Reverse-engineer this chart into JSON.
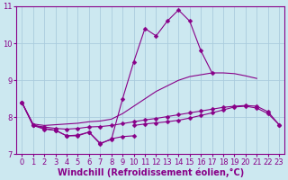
{
  "x": [
    0,
    1,
    2,
    3,
    4,
    5,
    6,
    7,
    8,
    9,
    10,
    11,
    12,
    13,
    14,
    15,
    16,
    17,
    18,
    19,
    20,
    21,
    22,
    23
  ],
  "line_main": [
    8.4,
    7.8,
    7.7,
    7.65,
    7.5,
    7.5,
    7.6,
    7.3,
    7.4,
    8.5,
    9.5,
    10.4,
    10.2,
    10.6,
    10.9,
    10.6,
    9.8,
    9.2,
    null,
    null,
    null,
    null,
    null,
    null
  ],
  "line_smooth_top": [
    8.4,
    7.82,
    7.78,
    7.8,
    7.82,
    7.84,
    7.88,
    7.9,
    7.95,
    8.1,
    8.3,
    8.5,
    8.7,
    8.85,
    9.0,
    9.1,
    9.15,
    9.2,
    9.2,
    9.18,
    9.12,
    9.05,
    null,
    null
  ],
  "line_mid": [
    null,
    null,
    null,
    null,
    null,
    null,
    null,
    null,
    null,
    null,
    7.78,
    7.82,
    7.85,
    7.88,
    7.92,
    7.98,
    8.05,
    8.12,
    8.2,
    8.28,
    8.3,
    8.25,
    8.1,
    7.8
  ],
  "line_bottom_dip": [
    8.4,
    7.78,
    7.68,
    7.65,
    7.5,
    7.52,
    7.6,
    7.28,
    7.42,
    7.48,
    7.5,
    null,
    null,
    null,
    null,
    null,
    null,
    null,
    null,
    null,
    null,
    null,
    null,
    null
  ],
  "line_full_low": [
    8.4,
    7.78,
    7.74,
    7.7,
    7.68,
    7.7,
    7.74,
    7.75,
    7.78,
    7.83,
    7.88,
    7.93,
    7.97,
    8.02,
    8.07,
    8.12,
    8.17,
    8.22,
    8.27,
    8.3,
    8.32,
    8.3,
    8.15,
    7.8
  ],
  "bg_color": "#cce8f0",
  "grid_color": "#aaccdd",
  "line_color": "#880088",
  "marker": "D",
  "markersize": 2.5,
  "xlim": [
    -0.5,
    23.5
  ],
  "ylim": [
    7.0,
    11.0
  ],
  "yticks": [
    7,
    8,
    9,
    10,
    11
  ],
  "xticks": [
    0,
    1,
    2,
    3,
    4,
    5,
    6,
    7,
    8,
    9,
    10,
    11,
    12,
    13,
    14,
    15,
    16,
    17,
    18,
    19,
    20,
    21,
    22,
    23
  ],
  "xlabel": "Windchill (Refroidissement éolien,°C)",
  "xlabel_fontsize": 7.0,
  "tick_fontsize": 6.0
}
